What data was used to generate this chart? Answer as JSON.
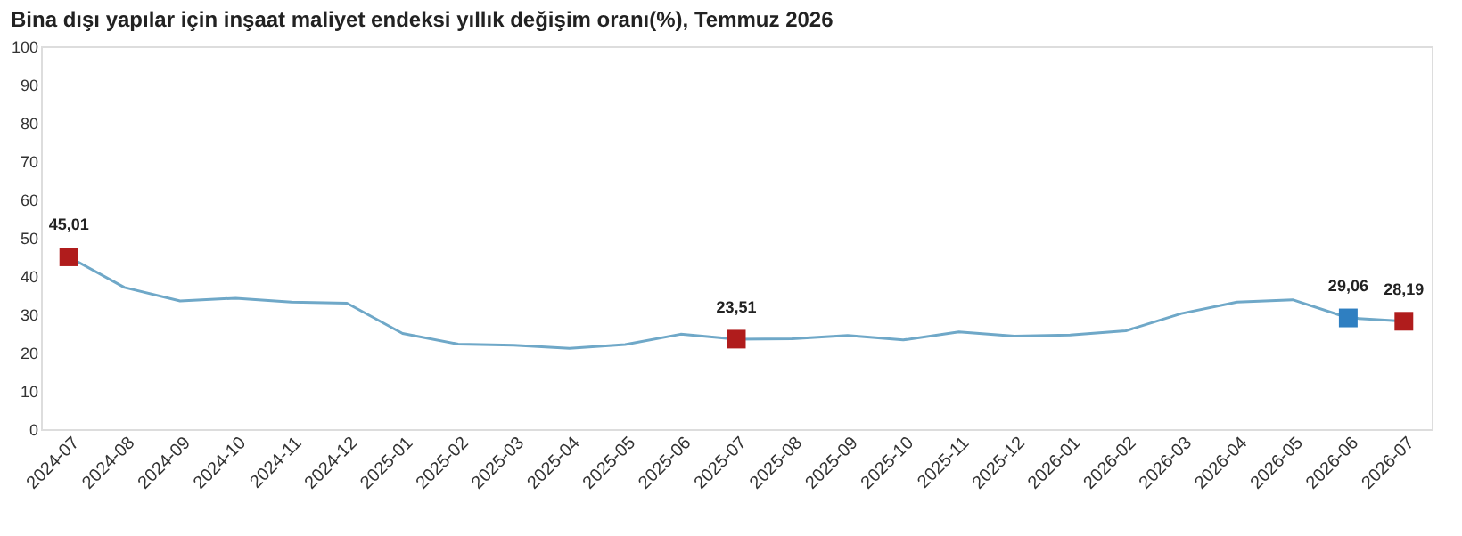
{
  "chart_data": {
    "type": "line",
    "title": "Bina dışı yapılar için inşaat maliyet endeksi yıllık değişim oranı(%), Temmuz 2026",
    "categories": [
      "2024-07",
      "2024-08",
      "2024-09",
      "2024-10",
      "2024-11",
      "2024-12",
      "2025-01",
      "2025-02",
      "2025-03",
      "2025-04",
      "2025-05",
      "2025-06",
      "2025-07",
      "2025-08",
      "2025-09",
      "2025-10",
      "2025-11",
      "2025-12",
      "2026-01",
      "2026-02",
      "2026-03",
      "2026-04",
      "2026-05",
      "2026-06",
      "2026-07"
    ],
    "series": [
      {
        "color": "#6fa8c8",
        "marker": "none",
        "values": [
          45.01,
          37,
          33.5,
          34.2,
          33.2,
          32.9,
          25,
          22.2,
          21.9,
          21.1,
          22.1,
          24.8,
          23.51,
          23.6,
          24.5,
          23.3,
          25.4,
          24.3,
          24.6,
          25.7,
          30.2,
          33.2,
          33.8,
          29.06,
          28.19
        ]
      },
      {
        "type": "scatter",
        "marker": "square",
        "colors": [
          "#b01c1c",
          null,
          null,
          null,
          null,
          null,
          null,
          null,
          null,
          null,
          null,
          null,
          "#b01c1c",
          null,
          null,
          null,
          null,
          null,
          null,
          null,
          null,
          null,
          null,
          "#2f7fc1",
          "#b01c1c"
        ],
        "values": [
          45.01,
          null,
          null,
          null,
          null,
          null,
          null,
          null,
          null,
          null,
          null,
          null,
          23.51,
          null,
          null,
          null,
          null,
          null,
          null,
          null,
          null,
          null,
          null,
          29.06,
          28.19
        ],
        "value_labels": [
          "45,01",
          null,
          null,
          null,
          null,
          null,
          null,
          null,
          null,
          null,
          null,
          null,
          "23,51",
          null,
          null,
          null,
          null,
          null,
          null,
          null,
          null,
          null,
          null,
          "29,06",
          "28,19"
        ]
      }
    ],
    "ylim": [
      0,
      100
    ],
    "yticks": [
      0,
      10,
      20,
      30,
      40,
      50,
      60,
      70,
      80,
      90,
      100
    ],
    "grid": false
  }
}
